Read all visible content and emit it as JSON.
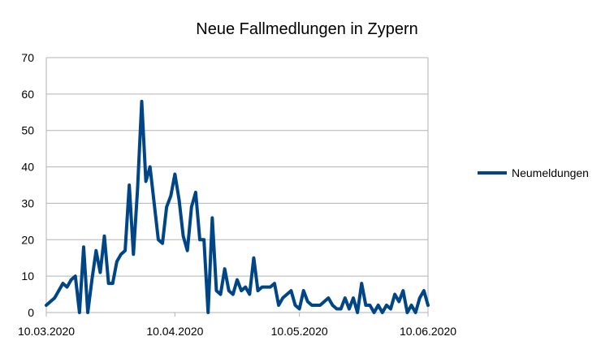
{
  "chart_data": {
    "type": "line",
    "title": "Neue Fallmedlungen in Zypern",
    "xlabel": "",
    "ylabel": "",
    "ylim": [
      0,
      70
    ],
    "yticks": [
      0,
      10,
      20,
      30,
      40,
      50,
      60,
      70
    ],
    "xlim": [
      "2020-03-10",
      "2020-06-10"
    ],
    "xticks": [
      {
        "date": "2020-03-10",
        "label": "10.03.2020"
      },
      {
        "date": "2020-04-10",
        "label": "10.04.2020"
      },
      {
        "date": "2020-05-10",
        "label": "10.05.2020"
      },
      {
        "date": "2020-06-10",
        "label": "10.06.2020"
      }
    ],
    "grid": true,
    "legend": "right",
    "colors": {
      "line": "#004586",
      "grid": "#b3b3b3",
      "axis": "#b3b3b3"
    },
    "series": [
      {
        "name": "Neumeldungen",
        "x": [
          "2020-03-10",
          "2020-03-11",
          "2020-03-12",
          "2020-03-13",
          "2020-03-14",
          "2020-03-15",
          "2020-03-16",
          "2020-03-17",
          "2020-03-18",
          "2020-03-19",
          "2020-03-20",
          "2020-03-21",
          "2020-03-22",
          "2020-03-23",
          "2020-03-24",
          "2020-03-25",
          "2020-03-26",
          "2020-03-27",
          "2020-03-28",
          "2020-03-29",
          "2020-03-30",
          "2020-03-31",
          "2020-04-01",
          "2020-04-02",
          "2020-04-03",
          "2020-04-04",
          "2020-04-05",
          "2020-04-06",
          "2020-04-07",
          "2020-04-08",
          "2020-04-09",
          "2020-04-10",
          "2020-04-11",
          "2020-04-12",
          "2020-04-13",
          "2020-04-14",
          "2020-04-15",
          "2020-04-16",
          "2020-04-17",
          "2020-04-18",
          "2020-04-19",
          "2020-04-20",
          "2020-04-21",
          "2020-04-22",
          "2020-04-23",
          "2020-04-24",
          "2020-04-25",
          "2020-04-26",
          "2020-04-27",
          "2020-04-28",
          "2020-04-29",
          "2020-04-30",
          "2020-05-01",
          "2020-05-02",
          "2020-05-03",
          "2020-05-04",
          "2020-05-05",
          "2020-05-06",
          "2020-05-07",
          "2020-05-08",
          "2020-05-09",
          "2020-05-10",
          "2020-05-11",
          "2020-05-12",
          "2020-05-13",
          "2020-05-14",
          "2020-05-15",
          "2020-05-16",
          "2020-05-17",
          "2020-05-18",
          "2020-05-19",
          "2020-05-20",
          "2020-05-21",
          "2020-05-22",
          "2020-05-23",
          "2020-05-24",
          "2020-05-25",
          "2020-05-26",
          "2020-05-27",
          "2020-05-28",
          "2020-05-29",
          "2020-05-30",
          "2020-05-31",
          "2020-06-01",
          "2020-06-02",
          "2020-06-03",
          "2020-06-04",
          "2020-06-05",
          "2020-06-06",
          "2020-06-07",
          "2020-06-08",
          "2020-06-09",
          "2020-06-10"
        ],
        "values": [
          2,
          3,
          4,
          6,
          8,
          7,
          9,
          10,
          0,
          18,
          0,
          9,
          17,
          11,
          21,
          8,
          8,
          14,
          16,
          17,
          35,
          16,
          34,
          58,
          36,
          40,
          30,
          20,
          19,
          29,
          32,
          38,
          31,
          21,
          17,
          29,
          33,
          20,
          20,
          0,
          26,
          6,
          5,
          12,
          6,
          5,
          9,
          6,
          7,
          5,
          15,
          6,
          7,
          7,
          7,
          8,
          2,
          4,
          5,
          6,
          2,
          1,
          6,
          3,
          2,
          2,
          2,
          3,
          4,
          2,
          1,
          1,
          4,
          1,
          4,
          0,
          8,
          2,
          2,
          0,
          2,
          0,
          2,
          1,
          5,
          3,
          6,
          0,
          2,
          0,
          4,
          6,
          2
        ]
      }
    ]
  }
}
